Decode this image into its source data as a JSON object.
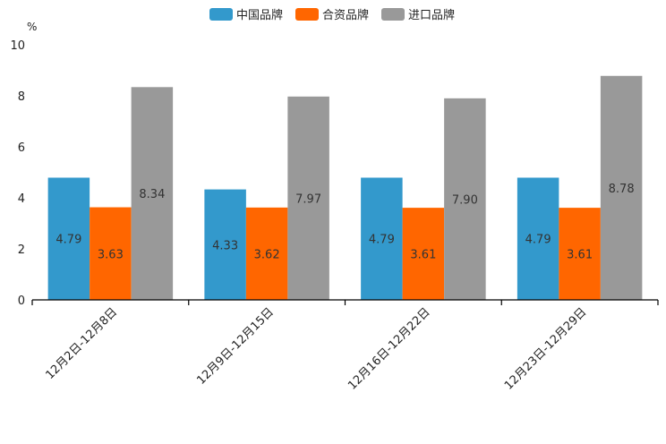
{
  "chart_data": {
    "type": "bar",
    "title": "",
    "xlabel": "",
    "ylabel": "%",
    "ylim": [
      0,
      10
    ],
    "yticks": [
      "0",
      "2",
      "4",
      "6",
      "8",
      "10"
    ],
    "grid": false,
    "legend_position": "top-center",
    "categories": [
      "12月2日-12月8日",
      "12月9日-12月15日",
      "12月16日-12月22日",
      "12月23日-12月29日"
    ],
    "series": [
      {
        "name": "中国品牌",
        "color": "#3399cc",
        "values": [
          4.79,
          4.33,
          4.79,
          4.79
        ],
        "labels": [
          "4.79",
          "4.33",
          "4.79",
          "4.79"
        ]
      },
      {
        "name": "合资品牌",
        "color": "#ff6600",
        "values": [
          3.63,
          3.62,
          3.61,
          3.61
        ],
        "labels": [
          "3.63",
          "3.62",
          "3.61",
          "3.61"
        ]
      },
      {
        "name": "进口品牌",
        "color": "#999999",
        "values": [
          8.34,
          7.97,
          7.9,
          8.78
        ],
        "labels": [
          "8.34",
          "7.97",
          "7.90",
          "8.78"
        ]
      }
    ]
  }
}
